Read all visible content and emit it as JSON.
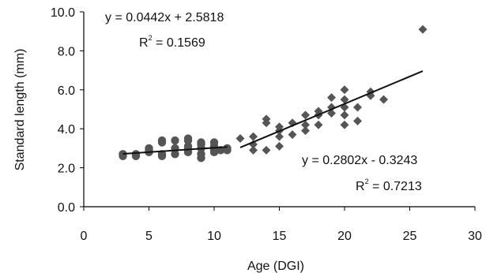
{
  "chart_data": {
    "type": "scatter",
    "xlabel": "Age (DGI)",
    "ylabel": "Standard length (mm)",
    "xlim": [
      0,
      30
    ],
    "ylim": [
      0.0,
      10.0
    ],
    "xticks": [
      "0",
      "5",
      "10",
      "15",
      "20",
      "25",
      "30"
    ],
    "yticks": [
      "0.0",
      "2.0",
      "4.0",
      "6.0",
      "8.0",
      "10.0"
    ],
    "grid": false,
    "legend": "none",
    "colors": {
      "points": "#555555",
      "lines": "#111111"
    },
    "series": [
      {
        "marker": "circle",
        "points": [
          [
            3,
            2.6
          ],
          [
            3,
            2.7
          ],
          [
            4,
            2.6
          ],
          [
            4,
            2.7
          ],
          [
            5,
            2.8
          ],
          [
            5,
            2.9
          ],
          [
            5,
            3.0
          ],
          [
            6,
            2.6
          ],
          [
            6,
            2.7
          ],
          [
            6,
            3.3
          ],
          [
            6,
            3.4
          ],
          [
            7,
            2.7
          ],
          [
            7,
            3.0
          ],
          [
            7,
            3.4
          ],
          [
            8,
            2.8
          ],
          [
            8,
            3.0
          ],
          [
            8,
            3.1
          ],
          [
            8,
            3.4
          ],
          [
            8,
            3.5
          ],
          [
            9,
            2.5
          ],
          [
            9,
            2.7
          ],
          [
            9,
            3.0
          ],
          [
            9,
            3.2
          ],
          [
            9,
            3.3
          ],
          [
            10,
            2.8
          ],
          [
            10,
            2.9
          ],
          [
            10,
            3.1
          ],
          [
            10,
            3.3
          ],
          [
            10.5,
            2.9
          ],
          [
            11,
            2.9
          ],
          [
            11,
            3.0
          ]
        ]
      },
      {
        "marker": "diamond",
        "points": [
          [
            12,
            3.5
          ],
          [
            13,
            2.9
          ],
          [
            13,
            3.2
          ],
          [
            13,
            3.6
          ],
          [
            14,
            2.9
          ],
          [
            14,
            4.3
          ],
          [
            14,
            4.5
          ],
          [
            15,
            3.1
          ],
          [
            15,
            3.6
          ],
          [
            15,
            3.9
          ],
          [
            15,
            4.1
          ],
          [
            16,
            3.7
          ],
          [
            16,
            4.3
          ],
          [
            17,
            3.9
          ],
          [
            17,
            4.2
          ],
          [
            17,
            4.7
          ],
          [
            18,
            4.2
          ],
          [
            18,
            4.7
          ],
          [
            18,
            4.9
          ],
          [
            19,
            4.8
          ],
          [
            19,
            5.1
          ],
          [
            19,
            5.6
          ],
          [
            20,
            4.2
          ],
          [
            20,
            4.7
          ],
          [
            20,
            5.1
          ],
          [
            20,
            5.5
          ],
          [
            20,
            6.0
          ],
          [
            21,
            4.4
          ],
          [
            21,
            5.1
          ],
          [
            22,
            5.7
          ],
          [
            22,
            5.9
          ],
          [
            23,
            5.5
          ],
          [
            26,
            9.1
          ]
        ]
      }
    ],
    "trendlines": [
      {
        "x_range": [
          3,
          11
        ],
        "slope": 0.0442,
        "intercept": 2.5818
      },
      {
        "x_range": [
          12,
          26
        ],
        "slope": 0.2802,
        "intercept": -0.3243
      }
    ],
    "annotations": [
      {
        "equation": "y = 0.0442x + 2.5818",
        "r2_prefix": "R",
        "r2_sup": "2",
        "r2_value": " = 0.1569"
      },
      {
        "equation": "y = 0.2802x - 0.3243",
        "r2_prefix": "R",
        "r2_sup": "2",
        "r2_value": " = 0.7213"
      }
    ]
  }
}
